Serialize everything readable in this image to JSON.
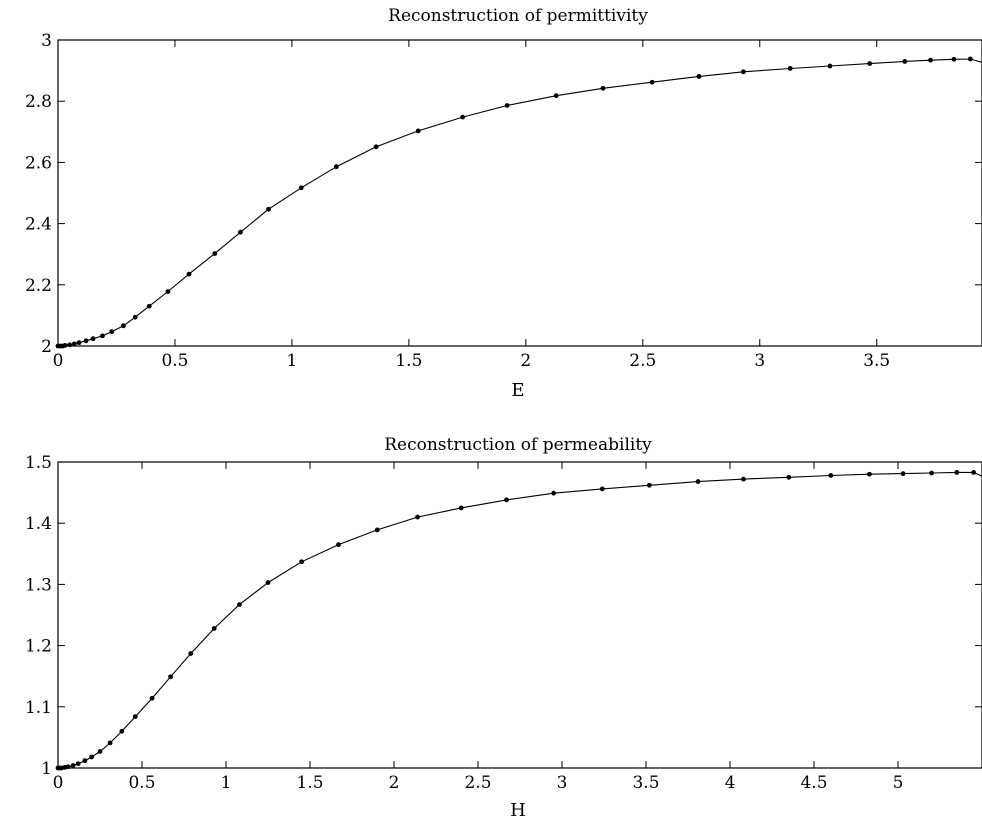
{
  "chart_data": [
    {
      "type": "line",
      "title": "Reconstruction of permittivity",
      "xlabel": "E",
      "ylabel": "",
      "xlim": [
        0,
        3.95
      ],
      "ylim": [
        2,
        3
      ],
      "xticks": [
        0,
        0.5,
        1,
        1.5,
        2,
        2.5,
        3,
        3.5
      ],
      "xtick_labels": [
        "0",
        "0.5",
        "1",
        "1.5",
        "2",
        "2.5",
        "3",
        "3.5"
      ],
      "yticks": [
        2,
        2.2,
        2.4,
        2.6,
        2.8,
        3
      ],
      "ytick_labels": [
        "2",
        "2.2",
        "2.4",
        "2.6",
        "2.8",
        "3"
      ],
      "grid": false,
      "series": [
        {
          "x": [
            0,
            0.01,
            0.02,
            0.03,
            0.05,
            0.07,
            0.09,
            0.12,
            0.15,
            0.19,
            0.23,
            0.28,
            0.33,
            0.39,
            0.47,
            0.56,
            0.67,
            0.78,
            0.9,
            1.04,
            1.19,
            1.36,
            1.54,
            1.73,
            1.92,
            2.13,
            2.33,
            2.54,
            2.74,
            2.93,
            3.13,
            3.3,
            3.47,
            3.62,
            3.73,
            3.83,
            3.9,
            3.95
          ],
          "y": [
            2.0,
            2.0,
            2.0,
            2.002,
            2.004,
            2.007,
            2.011,
            2.017,
            2.024,
            2.033,
            2.047,
            2.066,
            2.094,
            2.13,
            2.178,
            2.235,
            2.302,
            2.372,
            2.447,
            2.517,
            2.586,
            2.651,
            2.703,
            2.748,
            2.786,
            2.818,
            2.842,
            2.862,
            2.881,
            2.896,
            2.907,
            2.915,
            2.923,
            2.93,
            2.934,
            2.937,
            2.938,
            2.927
          ]
        }
      ]
    },
    {
      "type": "line",
      "title": "Reconstruction of permeability",
      "xlabel": "H",
      "ylabel": "",
      "xlim": [
        0,
        5.5
      ],
      "ylim": [
        1,
        1.5
      ],
      "xticks": [
        0,
        0.5,
        1,
        1.5,
        2,
        2.5,
        3,
        3.5,
        4,
        4.5,
        5
      ],
      "xtick_labels": [
        "0",
        "0.5",
        "1",
        "1.5",
        "2",
        "2.5",
        "3",
        "3.5",
        "4",
        "4.5",
        "5"
      ],
      "yticks": [
        1,
        1.1,
        1.2,
        1.3,
        1.4,
        1.5
      ],
      "ytick_labels": [
        "1",
        "1.1",
        "1.2",
        "1.3",
        "1.4",
        "1.5"
      ],
      "grid": false,
      "series": [
        {
          "x": [
            0,
            0.01,
            0.02,
            0.04,
            0.06,
            0.09,
            0.12,
            0.16,
            0.2,
            0.25,
            0.31,
            0.38,
            0.46,
            0.56,
            0.67,
            0.79,
            0.93,
            1.08,
            1.25,
            1.45,
            1.67,
            1.9,
            2.14,
            2.4,
            2.67,
            2.95,
            3.24,
            3.52,
            3.81,
            4.08,
            4.35,
            4.6,
            4.83,
            5.03,
            5.2,
            5.35,
            5.45,
            5.5
          ],
          "y": [
            1.0,
            1.0,
            1.0,
            1.001,
            1.002,
            1.004,
            1.007,
            1.012,
            1.018,
            1.027,
            1.041,
            1.06,
            1.084,
            1.114,
            1.149,
            1.187,
            1.228,
            1.267,
            1.303,
            1.337,
            1.365,
            1.389,
            1.41,
            1.425,
            1.438,
            1.449,
            1.456,
            1.462,
            1.468,
            1.472,
            1.475,
            1.478,
            1.48,
            1.481,
            1.482,
            1.483,
            1.483,
            1.477
          ]
        }
      ]
    }
  ]
}
